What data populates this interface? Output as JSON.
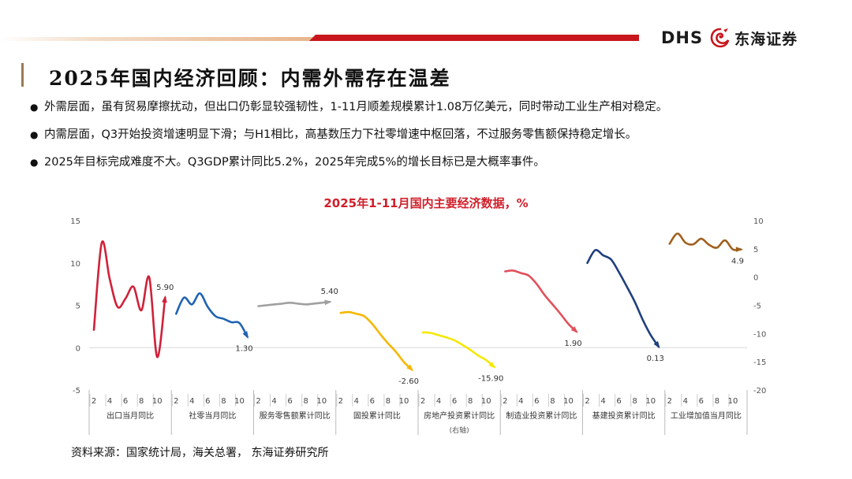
{
  "header": {
    "logo_text": "DHS",
    "logo_cn": "东海证券",
    "logo_icon": "dragon-emblem-icon",
    "accent_color": "#c8161d"
  },
  "title": "2025年国内经济回顾：内需外需存在温差",
  "bullets": [
    "外需层面，虽有贸易摩擦扰动，但出口仍彰显较强韧性，1-11月顺差规模累计1.08万亿美元，同时带动工业生产相对稳定。",
    "内需层面，Q3开始投资增速明显下滑；与H1相比，高基数压力下社零增速中枢回落，不过服务零售额保持稳定增长。",
    "2025年目标完成难度不大。Q3GDP累计同比5.2%，2025年完成5%的增长目标已是大概率事件。"
  ],
  "source": "资料来源：国家统计局，海关总署， 东海证券研究所",
  "chart_data": {
    "type": "line",
    "title": "2025年1-11月国内主要经济数据，%",
    "left_axis": {
      "ylim": [
        -5,
        15
      ],
      "ticks": [
        "-5",
        "0",
        "5",
        "10",
        "15"
      ]
    },
    "right_axis": {
      "ylim": [
        -20,
        10
      ],
      "ticks": [
        "-20",
        "-15",
        "-10",
        "-5",
        "0",
        "5",
        "10"
      ]
    },
    "grid": false,
    "x_tick_labels": [
      "2",
      "4",
      "6",
      "8",
      "10"
    ],
    "series": [
      {
        "name": "出口当月同比",
        "axis": "left",
        "color": "#d0213a",
        "x": [
          2,
          3,
          4,
          5,
          6,
          7,
          8,
          9,
          10,
          11
        ],
        "values": [
          2.1,
          12.4,
          8.1,
          4.8,
          5.8,
          7.2,
          4.4,
          8.3,
          -1.1,
          5.9
        ],
        "end_label": "5.90"
      },
      {
        "name": "社零当月同比",
        "axis": "left",
        "color": "#1f63b0",
        "x": [
          2,
          3,
          4,
          5,
          6,
          7,
          8,
          9,
          10,
          11
        ],
        "values": [
          4.0,
          5.9,
          5.1,
          6.4,
          4.8,
          3.7,
          3.4,
          3.0,
          2.9,
          1.3
        ],
        "end_label": "1.30"
      },
      {
        "name": "服务零售额累计同比",
        "axis": "left",
        "color": "#a0a0a0",
        "x": [
          2,
          3,
          4,
          5,
          6,
          7,
          8,
          9,
          10,
          11
        ],
        "values": [
          4.9,
          5.0,
          5.1,
          5.2,
          5.3,
          5.2,
          5.1,
          5.2,
          5.3,
          5.4
        ],
        "end_label": "5.40"
      },
      {
        "name": "固投累计同比",
        "axis": "left",
        "color": "#f5b800",
        "x": [
          2,
          3,
          4,
          5,
          6,
          7,
          8,
          9,
          10,
          11
        ],
        "values": [
          4.1,
          4.2,
          4.0,
          3.7,
          2.8,
          1.6,
          0.5,
          -0.5,
          -1.7,
          -2.6
        ],
        "end_label": "-2.60"
      },
      {
        "name": "房地产投资累计同比",
        "axis": "right",
        "color": "#f5e800",
        "x": [
          2,
          3,
          4,
          5,
          6,
          7,
          8,
          9,
          10,
          11
        ],
        "values": [
          -9.8,
          -9.9,
          -10.3,
          -10.7,
          -11.2,
          -12.0,
          -12.9,
          -13.9,
          -14.7,
          -15.9
        ],
        "end_label": "-15.90"
      },
      {
        "name": "制造业投资累计同比",
        "axis": "left",
        "color": "#e1505a",
        "x": [
          2,
          3,
          4,
          5,
          6,
          7,
          8,
          9,
          10,
          11
        ],
        "values": [
          9.0,
          9.1,
          8.8,
          8.5,
          7.5,
          6.2,
          5.1,
          4.0,
          2.8,
          1.9
        ],
        "end_label": "1.90"
      },
      {
        "name": "基建投资累计同比",
        "axis": "left",
        "color": "#1f3f7f",
        "x": [
          2,
          3,
          4,
          5,
          6,
          7,
          8,
          9,
          10,
          11
        ],
        "values": [
          10.0,
          11.5,
          10.9,
          10.4,
          8.9,
          7.2,
          5.4,
          3.3,
          1.5,
          0.13
        ],
        "end_label": "0.13"
      },
      {
        "name": "工业增加值当月同比",
        "axis": "right",
        "color": "#a0601e",
        "x": [
          2,
          3,
          4,
          5,
          6,
          7,
          8,
          9,
          10,
          11
        ],
        "values": [
          5.9,
          7.7,
          6.1,
          5.8,
          6.8,
          5.7,
          5.2,
          6.5,
          4.9,
          4.9
        ],
        "end_label": "4.9"
      }
    ],
    "category_labels": [
      {
        "text": "出口当月同比",
        "sub": ""
      },
      {
        "text": "社零当月同比",
        "sub": ""
      },
      {
        "text": "服务零售额累计同比",
        "sub": ""
      },
      {
        "text": "固投累计同比",
        "sub": ""
      },
      {
        "text": "房地产投资累计同比",
        "sub": "(右轴)"
      },
      {
        "text": "制造业投资累计同比",
        "sub": ""
      },
      {
        "text": "基建投资累计同比",
        "sub": ""
      },
      {
        "text": "工业增加值当月同比",
        "sub": ""
      }
    ]
  }
}
